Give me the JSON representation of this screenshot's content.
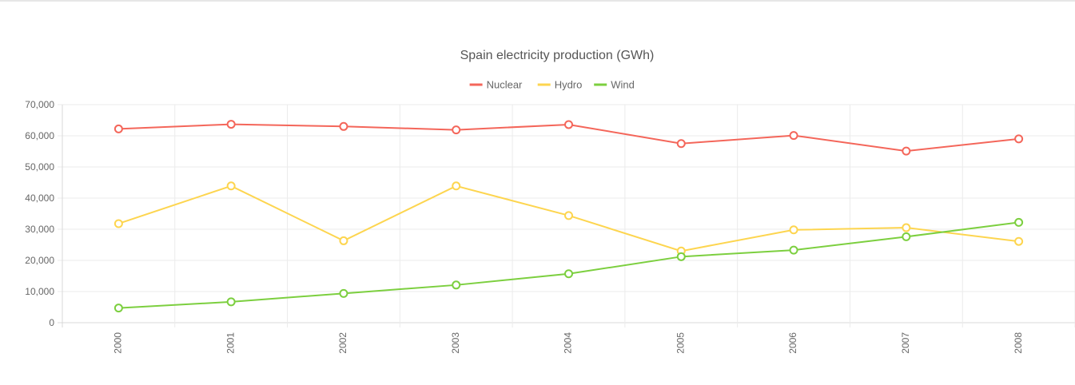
{
  "chart_data": {
    "type": "line",
    "title": "Spain electricity production (GWh)",
    "x": [
      "2000",
      "2001",
      "2002",
      "2003",
      "2004",
      "2005",
      "2006",
      "2007",
      "2008"
    ],
    "ylim": [
      0,
      70000
    ],
    "yticks": [
      "0",
      "10,000",
      "20,000",
      "30,000",
      "40,000",
      "50,000",
      "60,000",
      "70,000"
    ],
    "ytick_values": [
      0,
      10000,
      20000,
      30000,
      40000,
      50000,
      60000,
      70000
    ],
    "grid": true,
    "legend": "top",
    "series": [
      {
        "name": "Nuclear",
        "color": "#f4665a",
        "values": [
          62200,
          63700,
          63000,
          61900,
          63600,
          57500,
          60100,
          55100,
          59000
        ]
      },
      {
        "name": "Hydro",
        "color": "#fdd54f",
        "values": [
          31800,
          43900,
          26300,
          43900,
          34400,
          23000,
          29800,
          30500,
          26100
        ]
      },
      {
        "name": "Wind",
        "color": "#7ccf3f",
        "values": [
          4700,
          6700,
          9400,
          12100,
          15700,
          21200,
          23300,
          27600,
          32200
        ]
      }
    ]
  }
}
